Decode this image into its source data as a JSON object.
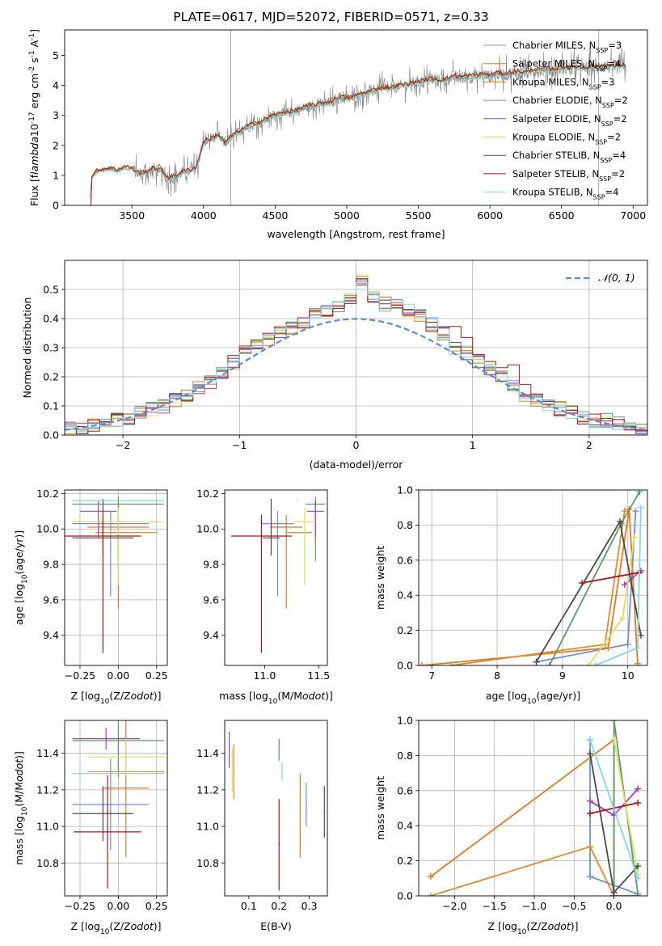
{
  "title": "PLATE=0617, MJD=52072, FIBERID=0571, z=0.33",
  "model_colors": [
    "#6b8fd8",
    "#e07a1f",
    "#e08a2a",
    "#5e9a66",
    "#a040c0",
    "#d8e060",
    "#4a4a4a",
    "#b01515",
    "#80d8e8"
  ],
  "legend_series": [
    {
      "name": "Chabrier MILES, N$_{SSP}$=3",
      "prefix": "Chabrier MILES, N",
      "n": "3"
    },
    {
      "name": "Salpeter MILES, N$_{SSP}$=4",
      "prefix": "Salpeter MILES, N",
      "n": "4"
    },
    {
      "name": "Kroupa MILES, N$_{SSP}$=3",
      "prefix": "Kroupa MILES, N",
      "n": "3"
    },
    {
      "name": "Chabrier ELODIE, N$_{SSP}$=2",
      "prefix": "Chabrier ELODIE, N",
      "n": "2"
    },
    {
      "name": "Salpeter ELODIE, N$_{SSP}$=2",
      "prefix": "Salpeter ELODIE, N",
      "n": "2"
    },
    {
      "name": "Kroupa ELODIE, N$_{SSP}$=2",
      "prefix": "Kroupa ELODIE, N",
      "n": "2"
    },
    {
      "name": "Chabrier STELIB, N$_{SSP}$=4",
      "prefix": "Chabrier STELIB, N",
      "n": "4"
    },
    {
      "name": "Salpeter STELIB, N$_{SSP}$=2",
      "prefix": "Salpeter STELIB, N",
      "n": "2"
    },
    {
      "name": "Kroupa STELIB, N$_{SSP}$=4",
      "prefix": "Kroupa STELIB, N",
      "n": "4"
    }
  ],
  "chart_data": [
    {
      "id": "spectrum",
      "type": "line",
      "xlabel": "wavelength [Angstrom, rest frame]",
      "ylabel": "Flux [f$_\\lambda$10$^{-17}$ erg cm$^{-2}$ s$^{-1}$ A$^{-1}$]",
      "xlim": [
        3030,
        7100
      ],
      "ylim": [
        0,
        5.85
      ],
      "xticks": [
        3500,
        4000,
        4500,
        5000,
        5500,
        6000,
        6500,
        7000
      ],
      "yticks": [
        0,
        1,
        2,
        3,
        4,
        5
      ],
      "grid": false,
      "legend_position": "top-right",
      "data_x": [
        3200,
        3220,
        3240,
        3260,
        3300,
        3350,
        3400,
        3450,
        3500,
        3550,
        3600,
        3650,
        3700,
        3750,
        3800,
        3850,
        3900,
        3950,
        4000,
        4050,
        4100,
        4150,
        4200,
        4250,
        4300,
        4350,
        4400,
        4450,
        4500,
        4550,
        4600,
        4650,
        4700,
        4750,
        4800,
        4850,
        4900,
        4950,
        5000,
        5050,
        5100,
        5150,
        5200,
        5250,
        5300,
        5350,
        5400,
        5450,
        5500,
        5550,
        5600,
        5650,
        5700,
        5750,
        5800,
        5850,
        5900,
        5950,
        6000,
        6050,
        6100,
        6150,
        6200,
        6250,
        6300,
        6350,
        6400,
        6450,
        6500,
        6550,
        6600,
        6650,
        6700,
        6750,
        6800,
        6850,
        6900,
        6950
      ],
      "model_flux": [
        0.0,
        0.95,
        1.05,
        1.15,
        1.18,
        1.22,
        1.15,
        1.28,
        1.2,
        1.05,
        1.1,
        1.22,
        1.15,
        0.9,
        0.95,
        1.1,
        1.15,
        1.25,
        2.1,
        2.2,
        2.35,
        2.05,
        2.3,
        2.45,
        2.6,
        2.7,
        2.75,
        2.9,
        3.0,
        3.05,
        3.1,
        3.15,
        3.25,
        3.3,
        3.35,
        3.4,
        3.45,
        3.6,
        3.55,
        3.6,
        3.7,
        3.75,
        3.85,
        3.9,
        3.9,
        3.95,
        4.0,
        4.05,
        4.1,
        4.15,
        4.2,
        4.15,
        4.2,
        4.3,
        4.25,
        4.3,
        4.3,
        4.35,
        4.3,
        4.4,
        4.35,
        4.4,
        4.45,
        4.4,
        4.5,
        4.5,
        4.55,
        4.5,
        4.6,
        4.55,
        4.6,
        4.55,
        4.6,
        4.6,
        4.65,
        4.6,
        4.65,
        4.65
      ],
      "noise_amplitude": 0.9
    },
    {
      "id": "residual_histogram",
      "type": "histogram",
      "xlabel": "(data-model)/error",
      "ylabel": "Normed distribution",
      "xlim": [
        -2.5,
        2.5
      ],
      "ylim": [
        0,
        0.6
      ],
      "xticks": [
        -2,
        -1,
        0,
        1,
        2
      ],
      "yticks": [
        0.0,
        0.1,
        0.2,
        0.3,
        0.4,
        0.5
      ],
      "grid": true,
      "legend_position": "top-right",
      "legend": "$\\mathcal{N}(0,1)$",
      "bin_edges": [
        -2.5,
        -2.4,
        -2.3,
        -2.2,
        -2.1,
        -2.0,
        -1.9,
        -1.8,
        -1.7,
        -1.6,
        -1.5,
        -1.4,
        -1.3,
        -1.2,
        -1.1,
        -1.0,
        -0.9,
        -0.8,
        -0.7,
        -0.6,
        -0.5,
        -0.4,
        -0.3,
        -0.2,
        -0.1,
        0.0,
        0.1,
        0.2,
        0.3,
        0.4,
        0.5,
        0.6,
        0.7,
        0.8,
        0.9,
        1.0,
        1.1,
        1.2,
        1.3,
        1.4,
        1.5,
        1.6,
        1.7,
        1.8,
        1.9,
        2.0,
        2.1,
        2.2,
        2.3,
        2.4,
        2.5
      ],
      "base_density": [
        0.02,
        0.02,
        0.03,
        0.04,
        0.05,
        0.06,
        0.08,
        0.09,
        0.1,
        0.12,
        0.14,
        0.16,
        0.18,
        0.21,
        0.25,
        0.29,
        0.31,
        0.33,
        0.35,
        0.37,
        0.39,
        0.42,
        0.43,
        0.44,
        0.47,
        0.53,
        0.47,
        0.45,
        0.46,
        0.43,
        0.41,
        0.38,
        0.35,
        0.3,
        0.28,
        0.25,
        0.22,
        0.2,
        0.17,
        0.14,
        0.12,
        0.1,
        0.09,
        0.08,
        0.06,
        0.05,
        0.05,
        0.04,
        0.03,
        0.02
      ]
    },
    {
      "id": "age_vs_Z",
      "type": "errorbar",
      "xlabel": "Z [log$_{10}$(Z/Z$_\\odot$)]",
      "ylabel": "age  [log$_{10}$(age/yr)]",
      "xlim": [
        -0.35,
        0.32
      ],
      "ylim": [
        9.23,
        10.22
      ],
      "xticks": [
        -0.25,
        0.0,
        0.25
      ],
      "xticklabels": [
        "−0.25",
        "0.00",
        "0.25"
      ],
      "yticks": [
        9.4,
        9.6,
        9.8,
        10.0,
        10.2
      ],
      "grid": true,
      "points": [
        {
          "x": -0.05,
          "xerr": 0.25,
          "y": 10.03,
          "yerr_lo": 0.41,
          "yerr_hi": 0.07
        },
        {
          "x": 0.0,
          "xerr": 0.2,
          "y": 10.01,
          "yerr_lo": 0.46,
          "yerr_hi": 0.07
        },
        {
          "x": 0.05,
          "xerr": 0.2,
          "y": 9.98,
          "yerr_lo": 0.0,
          "yerr_hi": 0.0
        },
        {
          "x": 0.0,
          "xerr": 0.3,
          "y": 10.14,
          "yerr_lo": 0.32,
          "yerr_hi": 0.04
        },
        {
          "x": -0.13,
          "xerr": 0.12,
          "y": 10.1,
          "yerr_lo": 0.15,
          "yerr_hi": 0.06
        },
        {
          "x": 0.0,
          "xerr": 0.3,
          "y": 10.04,
          "yerr_lo": 0.36,
          "yerr_hi": 0.08
        },
        {
          "x": -0.1,
          "xerr": 0.2,
          "y": 9.95,
          "yerr_lo": 0.1,
          "yerr_hi": 0.22
        },
        {
          "x": -0.1,
          "xerr": 0.25,
          "y": 9.96,
          "yerr_lo": 0.66,
          "yerr_hi": 0.12
        },
        {
          "x": 0.0,
          "xerr": 0.3,
          "y": 10.16,
          "yerr_lo": 0.0,
          "yerr_hi": 0.0
        }
      ]
    },
    {
      "id": "age_vs_mass",
      "type": "errorbar",
      "xlabel": "mass [log$_{10}$(M/M$_\\odot$)]",
      "xlim": [
        10.63,
        11.58
      ],
      "ylim": [
        9.23,
        10.22
      ],
      "xticks": [
        11.0,
        11.5
      ],
      "xticklabels": [
        "11.0",
        "11.5"
      ],
      "yticks": [
        9.4,
        9.6,
        9.8,
        10.0,
        10.2
      ],
      "grid": false,
      "points": [
        {
          "x": 11.12,
          "xerr": 0.15,
          "y": 10.03,
          "yerr_lo": 0.41,
          "yerr_hi": 0.07
        },
        {
          "x": 11.2,
          "xerr": 0.15,
          "y": 10.01,
          "yerr_lo": 0.46,
          "yerr_hi": 0.07
        },
        {
          "x": 11.32,
          "xerr": 0.12,
          "y": 9.98,
          "yerr_lo": 0.0,
          "yerr_hi": 0.0
        },
        {
          "x": 11.47,
          "xerr": 0.09,
          "y": 10.14,
          "yerr_lo": 0.32,
          "yerr_hi": 0.04
        },
        {
          "x": 11.47,
          "xerr": 0.08,
          "y": 10.1,
          "yerr_lo": 0.15,
          "yerr_hi": 0.06
        },
        {
          "x": 11.37,
          "xerr": 0.1,
          "y": 10.04,
          "yerr_lo": 0.36,
          "yerr_hi": 0.08
        },
        {
          "x": 11.06,
          "xerr": 0.08,
          "y": 9.95,
          "yerr_lo": 0.1,
          "yerr_hi": 0.22
        },
        {
          "x": 10.97,
          "xerr": 0.28,
          "y": 9.96,
          "yerr_lo": 0.66,
          "yerr_hi": 0.12
        },
        {
          "x": 11.3,
          "xerr": 0.0,
          "y": 10.16,
          "yerr_lo": 0.0,
          "yerr_hi": 0.0
        }
      ]
    },
    {
      "id": "mass_weight_vs_age",
      "type": "line",
      "xlabel": "age  [log$_{10}$(age/yr)]",
      "ylabel": "mass weight",
      "xlim": [
        6.8,
        10.3
      ],
      "ylim": [
        0,
        1
      ],
      "xticks": [
        7,
        8,
        9,
        10
      ],
      "xticklabels": [
        "7",
        "8",
        "9",
        "10"
      ],
      "yticks": [
        0.0,
        0.2,
        0.4,
        0.6,
        0.8,
        1.0
      ],
      "grid": true,
      "series": [
        {
          "x": [
            8.6,
            10.0,
            10.12
          ],
          "y": [
            0.02,
            0.12,
            0.88
          ]
        },
        {
          "x": [
            6.85,
            9.7,
            10.02,
            10.15
          ],
          "y": [
            0.0,
            0.1,
            0.89,
            0.01
          ]
        },
        {
          "x": [
            7.3,
            9.65,
            9.95
          ],
          "y": [
            0.0,
            0.12,
            0.88
          ]
        },
        {
          "x": [
            8.8,
            9.9,
            10.18
          ],
          "y": [
            0.0,
            0.81,
            0.99
          ]
        },
        {
          "x": [
            9.95,
            10.2
          ],
          "y": [
            0.46,
            0.54
          ]
        },
        {
          "x": [
            9.4,
            9.92,
            10.1
          ],
          "y": [
            0.0,
            0.27,
            0.73
          ]
        },
        {
          "x": [
            8.6,
            9.88,
            10.2
          ],
          "y": [
            0.02,
            0.82,
            0.17
          ]
        },
        {
          "x": [
            9.3,
            10.18
          ],
          "y": [
            0.47,
            0.53
          ]
        },
        {
          "x": [
            9.5,
            10.15,
            10.2
          ],
          "y": [
            0.0,
            0.1,
            0.9
          ]
        }
      ]
    },
    {
      "id": "mass_vs_Z",
      "type": "errorbar",
      "xlabel": "Z [log$_{10}$(Z/Z$_\\odot$)]",
      "ylabel": "mass [log$_{10}$(M/M$_\\odot$)]",
      "xlim": [
        -0.35,
        0.32
      ],
      "ylim": [
        10.62,
        11.58
      ],
      "xticks": [
        -0.25,
        0.0,
        0.25
      ],
      "xticklabels": [
        "−0.25",
        "0.00",
        "0.25"
      ],
      "yticks": [
        10.8,
        11.0,
        11.2,
        11.4
      ],
      "grid": true,
      "points": [
        {
          "x": -0.05,
          "xerr": 0.25,
          "y": 11.12,
          "yerr": 0.25
        },
        {
          "x": 0.05,
          "xerr": 0.15,
          "y": 11.21,
          "yerr": 0.38
        },
        {
          "x": 0.05,
          "xerr": 0.25,
          "y": 11.3,
          "yerr": 0.0
        },
        {
          "x": 0.0,
          "xerr": 0.3,
          "y": 11.47,
          "yerr": 0.2
        },
        {
          "x": -0.08,
          "xerr": 0.22,
          "y": 11.48,
          "yerr": 0.06
        },
        {
          "x": 0.05,
          "xerr": 0.25,
          "y": 11.38,
          "yerr": 0.1
        },
        {
          "x": -0.1,
          "xerr": 0.2,
          "y": 11.07,
          "yerr": 0.15
        },
        {
          "x": -0.07,
          "xerr": 0.22,
          "y": 10.97,
          "yerr": 0.31
        },
        {
          "x": 0.0,
          "xerr": 0.3,
          "y": 11.29,
          "yerr": 0.0
        }
      ]
    },
    {
      "id": "mass_vs_EBV",
      "type": "errorbar",
      "xlabel": "E(B-V)",
      "xlim": [
        0.02,
        0.36
      ],
      "ylim": [
        10.62,
        11.58
      ],
      "xticks": [
        0.1,
        0.2,
        0.3
      ],
      "xticklabels": [
        "0.1",
        "0.2",
        "0.3"
      ],
      "yticks": [
        10.8,
        11.0,
        11.2,
        11.4
      ],
      "grid": false,
      "points": [
        {
          "x": 0.29,
          "y": 11.12,
          "yerr": 0.12
        },
        {
          "x": 0.27,
          "y": 11.06,
          "yerr": 0.23
        },
        {
          "x": 0.05,
          "y": 11.3,
          "yerr": 0.15
        },
        {
          "x": 0.2,
          "y": 11.42,
          "yerr": 0.06
        },
        {
          "x": 0.035,
          "y": 11.42,
          "yerr": 0.1
        },
        {
          "x": 0.045,
          "y": 11.31,
          "yerr": 0.12
        },
        {
          "x": 0.35,
          "y": 11.08,
          "yerr": 0.14
        },
        {
          "x": 0.2,
          "y": 10.9,
          "yerr": 0.25
        },
        {
          "x": 0.21,
          "y": 11.3,
          "yerr": 0.05
        }
      ]
    },
    {
      "id": "mass_weight_vs_Z",
      "type": "line",
      "xlabel": "Z [log$_{10}$(Z/Z$_\\odot$)]",
      "ylabel": "mass weight",
      "xlim": [
        -2.45,
        0.42
      ],
      "ylim": [
        0,
        1
      ],
      "xticks": [
        -2.0,
        -1.5,
        -1.0,
        -0.5,
        0.0
      ],
      "xticklabels": [
        "−2.0",
        "−1.5",
        "−1.0",
        "−0.5",
        "0.0"
      ],
      "yticks": [
        0.0,
        0.2,
        0.4,
        0.6,
        0.8,
        1.0
      ],
      "grid": true,
      "series": [
        {
          "x": [
            -0.3,
            -0.3,
            0.3
          ],
          "y": [
            0.89,
            0.11,
            0.01
          ]
        },
        {
          "x": [
            -2.3,
            0.0,
            0.0,
            0.3
          ],
          "y": [
            0.11,
            0.89,
            0.0,
            0.0
          ]
        },
        {
          "x": [
            -2.3,
            -0.3,
            0.0
          ],
          "y": [
            0.0,
            0.28,
            0.0
          ]
        },
        {
          "x": [
            0.0,
            0.0,
            0.3
          ],
          "y": [
            0.0,
            1.0,
            0.01
          ]
        },
        {
          "x": [
            -0.3,
            0.0,
            0.3
          ],
          "y": [
            0.54,
            0.46,
            0.61
          ]
        },
        {
          "x": [
            0.0,
            0.3
          ],
          "y": [
            0.89,
            0.12
          ]
        },
        {
          "x": [
            -0.3,
            0.0,
            0.3
          ],
          "y": [
            0.81,
            0.02,
            0.17
          ]
        },
        {
          "x": [
            -0.3,
            0.3
          ],
          "y": [
            0.47,
            0.53
          ]
        },
        {
          "x": [
            -0.3,
            0.3
          ],
          "y": [
            0.89,
            0.1
          ]
        }
      ]
    }
  ]
}
